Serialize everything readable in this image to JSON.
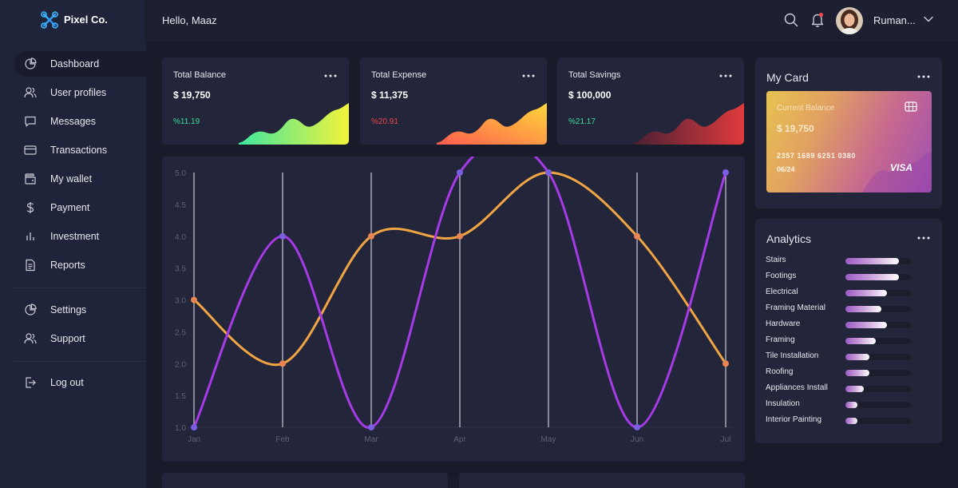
{
  "app": {
    "name": "Pixel Co."
  },
  "header": {
    "greeting": "Hello, Maaz",
    "user_name": "Ruman..."
  },
  "sidebar": {
    "items": [
      {
        "label": "Dashboard",
        "icon": "pie-chart-icon",
        "active": true
      },
      {
        "label": "User profiles",
        "icon": "users-icon"
      },
      {
        "label": "Messages",
        "icon": "message-icon"
      },
      {
        "label": "Transactions",
        "icon": "credit-card-icon"
      },
      {
        "label": "My wallet",
        "icon": "wallet-icon"
      },
      {
        "label": "Payment",
        "icon": "dollar-icon"
      },
      {
        "label": "Investment",
        "icon": "bar-chart-icon"
      },
      {
        "label": "Reports",
        "icon": "document-icon"
      }
    ],
    "secondary": [
      {
        "label": "Settings",
        "icon": "pie-chart-icon"
      },
      {
        "label": "Support",
        "icon": "users-icon"
      }
    ],
    "logout": {
      "label": "Log out",
      "icon": "logout-icon"
    }
  },
  "stats": [
    {
      "title": "Total Balance",
      "value": "$ 19,750",
      "change": "%11.19",
      "change_color": "#3ddc97",
      "colors": [
        "#3ee8a0",
        "#f3f33a"
      ]
    },
    {
      "title": "Total Expense",
      "value": "$ 11,375",
      "change": "%20.91",
      "change_color": "#f0464b",
      "colors": [
        "#ff5a4f",
        "#ffd83a"
      ]
    },
    {
      "title": "Total Savings",
      "value": "$ 100,000",
      "change": "%21.17",
      "change_color": "#3ddc97",
      "colors": [
        "#4a2033",
        "#e03a3c"
      ]
    }
  ],
  "my_card": {
    "title": "My Card",
    "label": "Current Balance",
    "amount": "$ 19,750",
    "number": "2357 1689 6251 0380",
    "expiry": "06/24",
    "brand": "VISA"
  },
  "analytics": {
    "title": "Analytics",
    "items": [
      {
        "label": "Stairs",
        "value": 0.82
      },
      {
        "label": "Footings",
        "value": 0.82
      },
      {
        "label": "Electrical",
        "value": 0.63
      },
      {
        "label": "Framing Material",
        "value": 0.55
      },
      {
        "label": "Hardware",
        "value": 0.63
      },
      {
        "label": "Framing",
        "value": 0.46
      },
      {
        "label": "Tile Installation",
        "value": 0.37
      },
      {
        "label": "Roofing",
        "value": 0.37
      },
      {
        "label": "Appliances Install",
        "value": 0.28
      },
      {
        "label": "Insulation",
        "value": 0.18
      },
      {
        "label": "Interior Painting",
        "value": 0.18
      }
    ]
  },
  "chart_data": {
    "type": "line",
    "title": "",
    "xlabel": "",
    "ylabel": "",
    "categories": [
      "Jan",
      "Feb",
      "Mar",
      "Apr",
      "May",
      "Jun",
      "Jul"
    ],
    "ylim": [
      1.0,
      5.0
    ],
    "yticks": [
      "5.0",
      "4.5",
      "4.0",
      "3.5",
      "3.0",
      "2.5",
      "2.0",
      "1.5",
      "1.0"
    ],
    "grid": "vertical",
    "series": [
      {
        "values": [
          1,
          4,
          1,
          5,
          5,
          1,
          5
        ],
        "color": "#a53ae6",
        "marker_color": "#7a5fe0"
      },
      {
        "values": [
          3,
          2,
          4,
          4,
          5,
          4,
          2
        ],
        "color": "#f0a443",
        "marker_color": "#e88552"
      }
    ]
  }
}
